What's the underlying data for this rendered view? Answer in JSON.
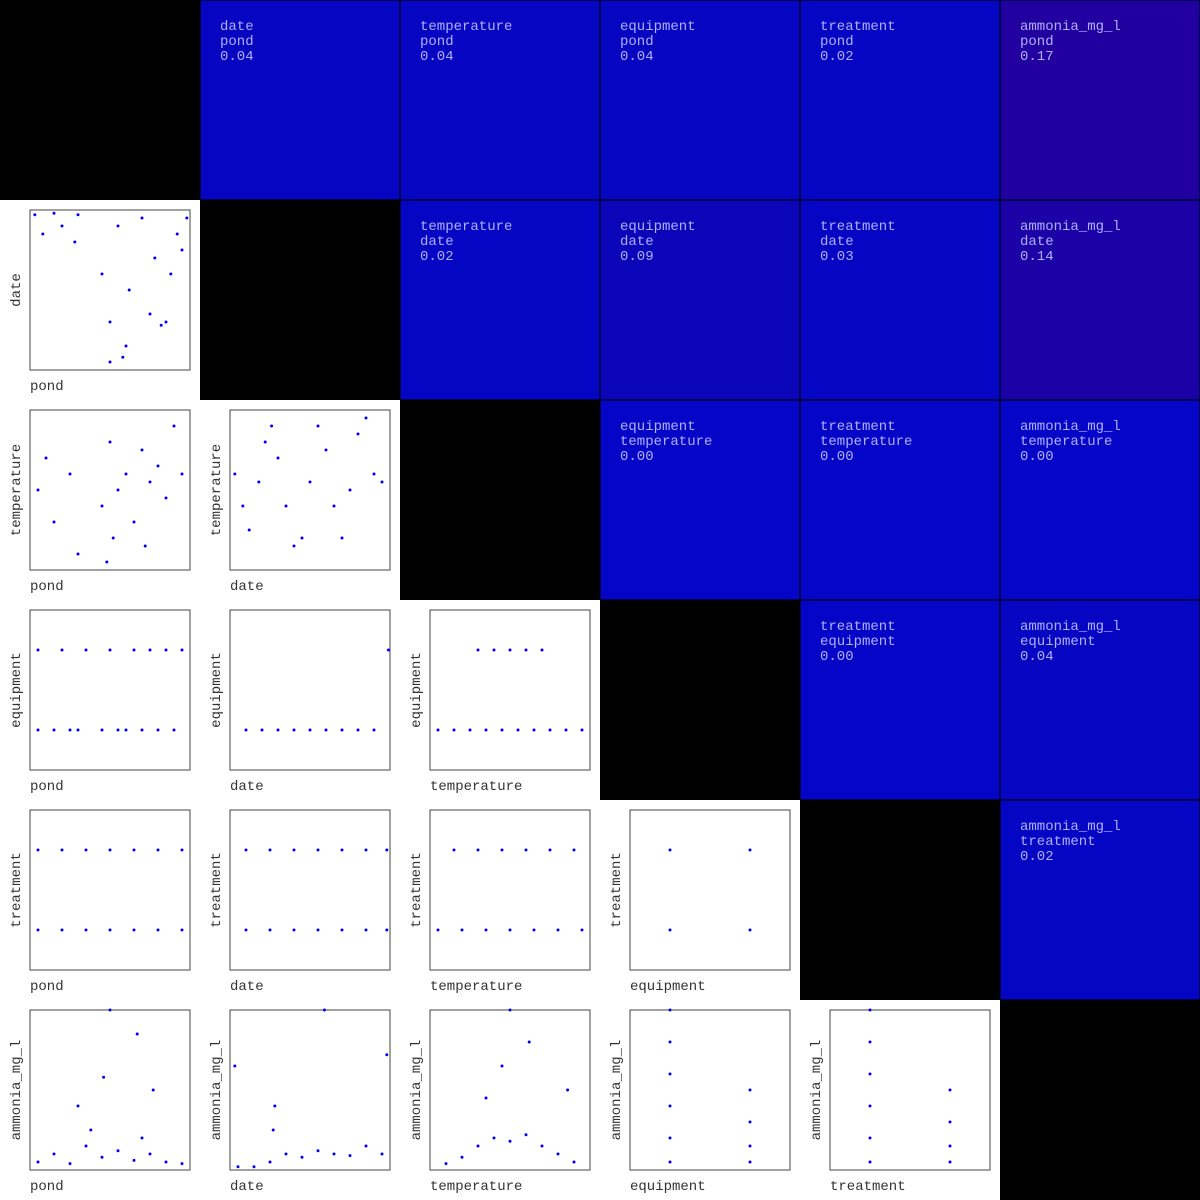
{
  "chart_data": {
    "type": "scatter_matrix",
    "variables": [
      "pond",
      "date",
      "temperature",
      "equipment",
      "treatment",
      "ammonia_mg_l"
    ],
    "correlations": [
      [
        {
          "value": "0.04",
          "color": "#0505c2"
        },
        {
          "value": "0.04",
          "color": "#0505c2"
        },
        {
          "value": "0.04",
          "color": "#0505c2"
        },
        {
          "value": "0.02",
          "color": "#0505c4"
        },
        {
          "value": "0.17",
          "color": "#2200a0"
        }
      ],
      [
        {
          "value": "0.02",
          "color": "#0505c4"
        },
        {
          "value": "0.09",
          "color": "#0a05b8"
        },
        {
          "value": "0.03",
          "color": "#0505c3"
        },
        {
          "value": "0.14",
          "color": "#1c02a6"
        }
      ],
      [
        {
          "value": "0.00",
          "color": "#0505c8"
        },
        {
          "value": "0.00",
          "color": "#0505c8"
        },
        {
          "value": "0.00",
          "color": "#0505c8"
        }
      ],
      [
        {
          "value": "0.00",
          "color": "#0505c8"
        },
        {
          "value": "0.04",
          "color": "#0505c2"
        }
      ],
      [
        {
          "value": "0.02",
          "color": "#0505c4"
        }
      ]
    ],
    "xlim": [
      0,
      1
    ],
    "ylim": [
      0,
      1
    ],
    "point_color": "#0000ff",
    "scatter": [
      [
        {
          "x": [
            0.03,
            0.08,
            0.15,
            0.2,
            0.3,
            0.28,
            0.45,
            0.5,
            0.55,
            0.6,
            0.62,
            0.7,
            0.75,
            0.78,
            0.82,
            0.85,
            0.88,
            0.92,
            0.95,
            0.98,
            0.5,
            0.58
          ],
          "y": [
            0.97,
            0.85,
            0.98,
            0.9,
            0.97,
            0.8,
            0.6,
            0.3,
            0.9,
            0.15,
            0.5,
            0.95,
            0.35,
            0.7,
            0.28,
            0.3,
            0.6,
            0.85,
            0.75,
            0.95,
            0.05,
            0.08
          ]
        }
      ],
      [
        {
          "x": [
            0.05,
            0.1,
            0.15,
            0.25,
            0.3,
            0.45,
            0.5,
            0.55,
            0.52,
            0.6,
            0.65,
            0.7,
            0.75,
            0.8,
            0.85,
            0.9,
            0.95,
            0.48,
            0.72
          ],
          "y": [
            0.5,
            0.7,
            0.3,
            0.6,
            0.1,
            0.4,
            0.8,
            0.5,
            0.2,
            0.6,
            0.3,
            0.75,
            0.55,
            0.65,
            0.45,
            0.9,
            0.6,
            0.05,
            0.15
          ]
        },
        {
          "x": [
            0.03,
            0.08,
            0.12,
            0.18,
            0.22,
            0.26,
            0.3,
            0.35,
            0.4,
            0.45,
            0.5,
            0.55,
            0.6,
            0.65,
            0.7,
            0.75,
            0.8,
            0.85,
            0.9,
            0.95
          ],
          "y": [
            0.6,
            0.4,
            0.25,
            0.55,
            0.8,
            0.9,
            0.7,
            0.4,
            0.15,
            0.2,
            0.55,
            0.9,
            0.75,
            0.4,
            0.2,
            0.5,
            0.85,
            0.95,
            0.6,
            0.55
          ]
        }
      ],
      [
        {
          "x": [
            0.05,
            0.15,
            0.25,
            0.3,
            0.45,
            0.55,
            0.6,
            0.7,
            0.8,
            0.9,
            0.05,
            0.2,
            0.35,
            0.5,
            0.65,
            0.75,
            0.85,
            0.95
          ],
          "y": [
            0.25,
            0.25,
            0.25,
            0.25,
            0.25,
            0.25,
            0.25,
            0.25,
            0.25,
            0.25,
            0.75,
            0.75,
            0.75,
            0.75,
            0.75,
            0.75,
            0.75,
            0.75
          ]
        },
        {
          "x": [
            0.1,
            0.2,
            0.3,
            0.4,
            0.5,
            0.6,
            0.7,
            0.8,
            0.9,
            0.99
          ],
          "y": [
            0.25,
            0.25,
            0.25,
            0.25,
            0.25,
            0.25,
            0.25,
            0.25,
            0.25,
            0.75
          ]
        },
        {
          "x": [
            0.05,
            0.15,
            0.25,
            0.35,
            0.45,
            0.55,
            0.65,
            0.75,
            0.85,
            0.95,
            0.3,
            0.4,
            0.5,
            0.6,
            0.7
          ],
          "y": [
            0.25,
            0.25,
            0.25,
            0.25,
            0.25,
            0.25,
            0.25,
            0.25,
            0.25,
            0.25,
            0.75,
            0.75,
            0.75,
            0.75,
            0.75
          ]
        }
      ],
      [
        {
          "x": [
            0.05,
            0.2,
            0.35,
            0.5,
            0.65,
            0.8,
            0.95,
            0.05,
            0.2,
            0.35,
            0.5,
            0.65,
            0.8,
            0.95
          ],
          "y": [
            0.25,
            0.25,
            0.25,
            0.25,
            0.25,
            0.25,
            0.25,
            0.75,
            0.75,
            0.75,
            0.75,
            0.75,
            0.75,
            0.75
          ]
        },
        {
          "x": [
            0.1,
            0.25,
            0.4,
            0.55,
            0.7,
            0.85,
            0.98,
            0.1,
            0.25,
            0.4,
            0.55,
            0.7,
            0.85,
            0.98
          ],
          "y": [
            0.25,
            0.25,
            0.25,
            0.25,
            0.25,
            0.25,
            0.25,
            0.75,
            0.75,
            0.75,
            0.75,
            0.75,
            0.75,
            0.75
          ]
        },
        {
          "x": [
            0.05,
            0.2,
            0.35,
            0.5,
            0.65,
            0.8,
            0.95,
            0.15,
            0.3,
            0.45,
            0.6,
            0.75,
            0.9
          ],
          "y": [
            0.25,
            0.25,
            0.25,
            0.25,
            0.25,
            0.25,
            0.25,
            0.75,
            0.75,
            0.75,
            0.75,
            0.75,
            0.75
          ]
        },
        {
          "x": [
            0.25,
            0.75,
            0.25,
            0.75
          ],
          "y": [
            0.25,
            0.25,
            0.75,
            0.75
          ]
        }
      ],
      [
        {
          "x": [
            0.05,
            0.15,
            0.25,
            0.35,
            0.45,
            0.55,
            0.65,
            0.75,
            0.85,
            0.95,
            0.5,
            0.46,
            0.67,
            0.77,
            0.7,
            0.38,
            0.3
          ],
          "y": [
            0.05,
            0.1,
            0.04,
            0.15,
            0.08,
            0.12,
            0.06,
            0.1,
            0.05,
            0.04,
            1.0,
            0.58,
            0.85,
            0.5,
            0.2,
            0.25,
            0.4
          ]
        },
        {
          "x": [
            0.05,
            0.15,
            0.25,
            0.28,
            0.27,
            0.35,
            0.45,
            0.55,
            0.65,
            0.75,
            0.85,
            0.95,
            0.59,
            0.98,
            0.03
          ],
          "y": [
            0.02,
            0.02,
            0.05,
            0.4,
            0.25,
            0.1,
            0.08,
            0.12,
            0.1,
            0.09,
            0.15,
            0.1,
            1.0,
            0.72,
            0.65
          ]
        },
        {
          "x": [
            0.1,
            0.2,
            0.3,
            0.4,
            0.5,
            0.6,
            0.7,
            0.8,
            0.9,
            0.5,
            0.45,
            0.62,
            0.86,
            0.35
          ],
          "y": [
            0.04,
            0.08,
            0.15,
            0.2,
            0.18,
            0.22,
            0.15,
            0.1,
            0.05,
            1.0,
            0.65,
            0.8,
            0.5,
            0.45
          ]
        },
        {
          "x": [
            0.25,
            0.25,
            0.25,
            0.25,
            0.25,
            0.25,
            0.75,
            0.75,
            0.75,
            0.75
          ],
          "y": [
            0.05,
            0.2,
            0.4,
            0.6,
            0.8,
            1.0,
            0.05,
            0.15,
            0.3,
            0.5
          ]
        },
        {
          "x": [
            0.25,
            0.25,
            0.25,
            0.25,
            0.25,
            0.25,
            0.75,
            0.75,
            0.75,
            0.75
          ],
          "y": [
            0.05,
            0.2,
            0.4,
            0.6,
            0.8,
            1.0,
            0.05,
            0.15,
            0.3,
            0.5
          ]
        }
      ]
    ]
  }
}
